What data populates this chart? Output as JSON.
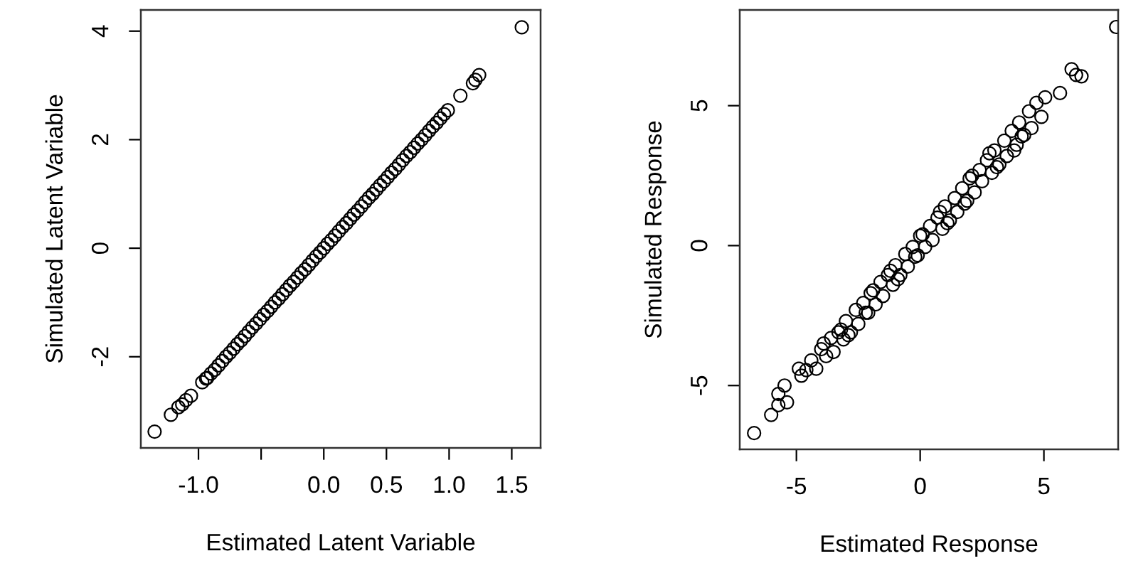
{
  "chart_data": [
    {
      "type": "scatter",
      "xlabel": "Estimated Latent Variable",
      "ylabel": "Simulated Latent Variable",
      "xlim": [
        -1.46,
        1.73
      ],
      "ylim": [
        -3.68,
        4.39
      ],
      "xticks": [
        {
          "value": -1.0,
          "label": "-1.0"
        },
        {
          "value": -0.5,
          "label": null
        },
        {
          "value": 0.0,
          "label": "0.0"
        },
        0.5,
        {
          "value": 1.0,
          "label": "1.0"
        },
        1.5
      ],
      "yticks": [
        {
          "value": -2,
          "label": "-2"
        },
        0,
        2,
        4
      ],
      "marker": "circle",
      "grid": false,
      "series": [
        {
          "color": "#000000",
          "x": [
            -1.35,
            -1.22,
            -1.16,
            -1.13,
            -1.1,
            -1.06,
            -0.97,
            -0.94,
            -0.93,
            -0.9,
            -0.87,
            -0.84,
            -0.81,
            -0.78,
            -0.75,
            -0.72,
            -0.69,
            -0.66,
            -0.63,
            -0.6,
            -0.57,
            -0.54,
            -0.51,
            -0.48,
            -0.45,
            -0.42,
            -0.39,
            -0.36,
            -0.33,
            -0.3,
            -0.27,
            -0.24,
            -0.21,
            -0.18,
            -0.15,
            -0.12,
            -0.09,
            -0.06,
            -0.03,
            0.0,
            0.03,
            0.06,
            0.09,
            0.12,
            0.15,
            0.18,
            0.21,
            0.24,
            0.27,
            0.3,
            0.33,
            0.36,
            0.39,
            0.42,
            0.45,
            0.48,
            0.51,
            0.54,
            0.57,
            0.6,
            0.63,
            0.66,
            0.69,
            0.72,
            0.75,
            0.78,
            0.81,
            0.84,
            0.87,
            0.9,
            0.93,
            0.96,
            0.99,
            1.09,
            1.19,
            1.21,
            1.24,
            1.58
          ],
          "values": [
            -3.38,
            -3.07,
            -2.93,
            -2.88,
            -2.8,
            -2.72,
            -2.47,
            -2.4,
            -2.39,
            -2.31,
            -2.24,
            -2.16,
            -2.08,
            -2.0,
            -1.93,
            -1.85,
            -1.77,
            -1.7,
            -1.62,
            -1.54,
            -1.46,
            -1.39,
            -1.31,
            -1.23,
            -1.16,
            -1.08,
            -1.0,
            -0.93,
            -0.85,
            -0.77,
            -0.69,
            -0.62,
            -0.54,
            -0.46,
            -0.39,
            -0.31,
            -0.23,
            -0.15,
            -0.08,
            0.0,
            0.08,
            0.15,
            0.23,
            0.31,
            0.39,
            0.46,
            0.54,
            0.62,
            0.69,
            0.77,
            0.85,
            0.93,
            1.0,
            1.08,
            1.16,
            1.23,
            1.31,
            1.39,
            1.46,
            1.54,
            1.62,
            1.7,
            1.77,
            1.85,
            1.93,
            2.0,
            2.08,
            2.16,
            2.24,
            2.31,
            2.39,
            2.47,
            2.54,
            2.81,
            3.04,
            3.1,
            3.19,
            4.07
          ]
        }
      ]
    },
    {
      "type": "scatter",
      "xlabel": "Estimated Response",
      "ylabel": "Simulated Response",
      "xlim": [
        -7.29,
        8.0
      ],
      "ylim": [
        -7.28,
        8.42
      ],
      "xticks": [
        {
          "value": -5,
          "label": "-5"
        },
        0,
        5
      ],
      "yticks": [
        {
          "value": -5,
          "label": "-5"
        },
        0,
        5
      ],
      "marker": "circle",
      "grid": false,
      "series": [
        {
          "color": "#000000",
          "x": [
            -6.71,
            -6.02,
            -5.73,
            -5.73,
            -5.38,
            -5.48,
            -4.9,
            -4.8,
            -4.6,
            -4.4,
            -4.2,
            -4.0,
            -3.8,
            -3.6,
            -3.5,
            -3.3,
            -3.1,
            -3.0,
            -2.8,
            -2.6,
            -2.5,
            -2.3,
            -2.1,
            -2.0,
            -1.8,
            -1.6,
            -1.5,
            -1.3,
            -1.1,
            -1.0,
            -0.8,
            -0.6,
            -0.5,
            -0.3,
            -0.1,
            0.0,
            0.2,
            0.4,
            0.5,
            0.7,
            0.9,
            1.0,
            1.2,
            1.4,
            1.5,
            1.7,
            1.9,
            2.0,
            2.2,
            2.4,
            2.5,
            2.7,
            2.9,
            3.0,
            3.2,
            3.4,
            3.5,
            3.7,
            3.9,
            4.0,
            4.2,
            4.4,
            4.5,
            4.7,
            4.9,
            -3.9,
            -2.9,
            -1.9,
            -0.9,
            0.1,
            1.1,
            2.1,
            3.1,
            4.1,
            -3.2,
            -2.2,
            -1.2,
            -0.2,
            0.8,
            1.8,
            2.8,
            3.8,
            5.05,
            5.65,
            6.12,
            6.3,
            6.52,
            7.92
          ],
          "values": [
            -6.7,
            -6.05,
            -5.7,
            -5.3,
            -5.6,
            -5.0,
            -4.4,
            -4.65,
            -4.45,
            -4.1,
            -4.4,
            -3.7,
            -3.95,
            -3.3,
            -3.8,
            -3.1,
            -3.35,
            -2.7,
            -3.1,
            -2.3,
            -2.8,
            -2.05,
            -2.4,
            -1.7,
            -2.1,
            -1.3,
            -1.8,
            -1.05,
            -1.4,
            -0.7,
            -1.05,
            -0.3,
            -0.75,
            -0.05,
            -0.35,
            0.35,
            -0.05,
            0.7,
            0.2,
            1.0,
            0.6,
            1.4,
            0.9,
            1.7,
            1.2,
            2.05,
            1.6,
            2.4,
            1.9,
            2.7,
            2.3,
            3.05,
            2.6,
            3.4,
            2.9,
            3.75,
            3.2,
            4.1,
            3.6,
            4.4,
            3.95,
            4.8,
            4.2,
            5.1,
            4.6,
            -3.5,
            -3.2,
            -1.6,
            -1.2,
            0.4,
            0.8,
            2.5,
            2.8,
            3.9,
            -3.0,
            -2.4,
            -0.9,
            -0.4,
            1.2,
            1.5,
            3.3,
            3.4,
            5.3,
            5.45,
            6.3,
            6.1,
            6.05,
            7.81
          ]
        }
      ]
    }
  ]
}
